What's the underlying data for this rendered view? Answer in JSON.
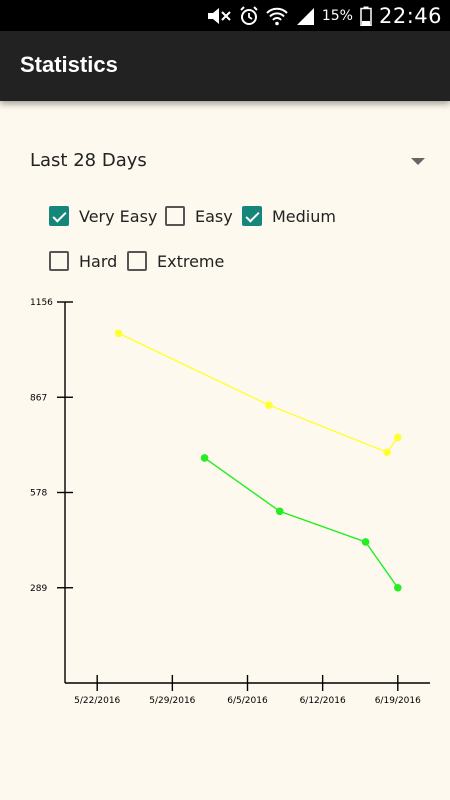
{
  "status_bar": {
    "clock": "22:46",
    "battery_pct": "15%",
    "icons": [
      "mute-icon",
      "alarm-icon",
      "wifi-icon",
      "signal-icon",
      "battery-icon"
    ]
  },
  "appbar": {
    "title": "Statistics"
  },
  "range_selector": {
    "value": "Last 28 Days"
  },
  "filters": [
    {
      "label": "Very Easy",
      "checked": true
    },
    {
      "label": "Easy",
      "checked": false
    },
    {
      "label": "Medium",
      "checked": true
    },
    {
      "label": "Hard",
      "checked": false
    },
    {
      "label": "Extreme",
      "checked": false
    }
  ],
  "colors": {
    "very_easy": "#ffff33",
    "medium": "#22ee22",
    "accent": "#16857a"
  },
  "chart_data": {
    "type": "line",
    "title": "",
    "xlabel": "",
    "ylabel": "",
    "x_ticks": [
      "5/22/2016",
      "5/29/2016",
      "6/5/2016",
      "6/12/2016",
      "6/19/2016"
    ],
    "y_ticks": [
      289,
      578,
      867,
      1156
    ],
    "ylim": [
      0,
      1156
    ],
    "xlim": [
      "5/19/2016",
      "6/22/2016"
    ],
    "series": [
      {
        "color": "#ffff33",
        "points": [
          {
            "x": "5/24/2016",
            "y": 1061
          },
          {
            "x": "6/7/2016",
            "y": 843
          },
          {
            "x": "6/18/2016",
            "y": 700
          },
          {
            "x": "6/19/2016",
            "y": 745
          }
        ]
      },
      {
        "color": "#22ee22",
        "points": [
          {
            "x": "6/1/2016",
            "y": 683
          },
          {
            "x": "6/8/2016",
            "y": 521
          },
          {
            "x": "6/16/2016",
            "y": 428
          },
          {
            "x": "6/19/2016",
            "y": 289
          }
        ]
      }
    ]
  }
}
